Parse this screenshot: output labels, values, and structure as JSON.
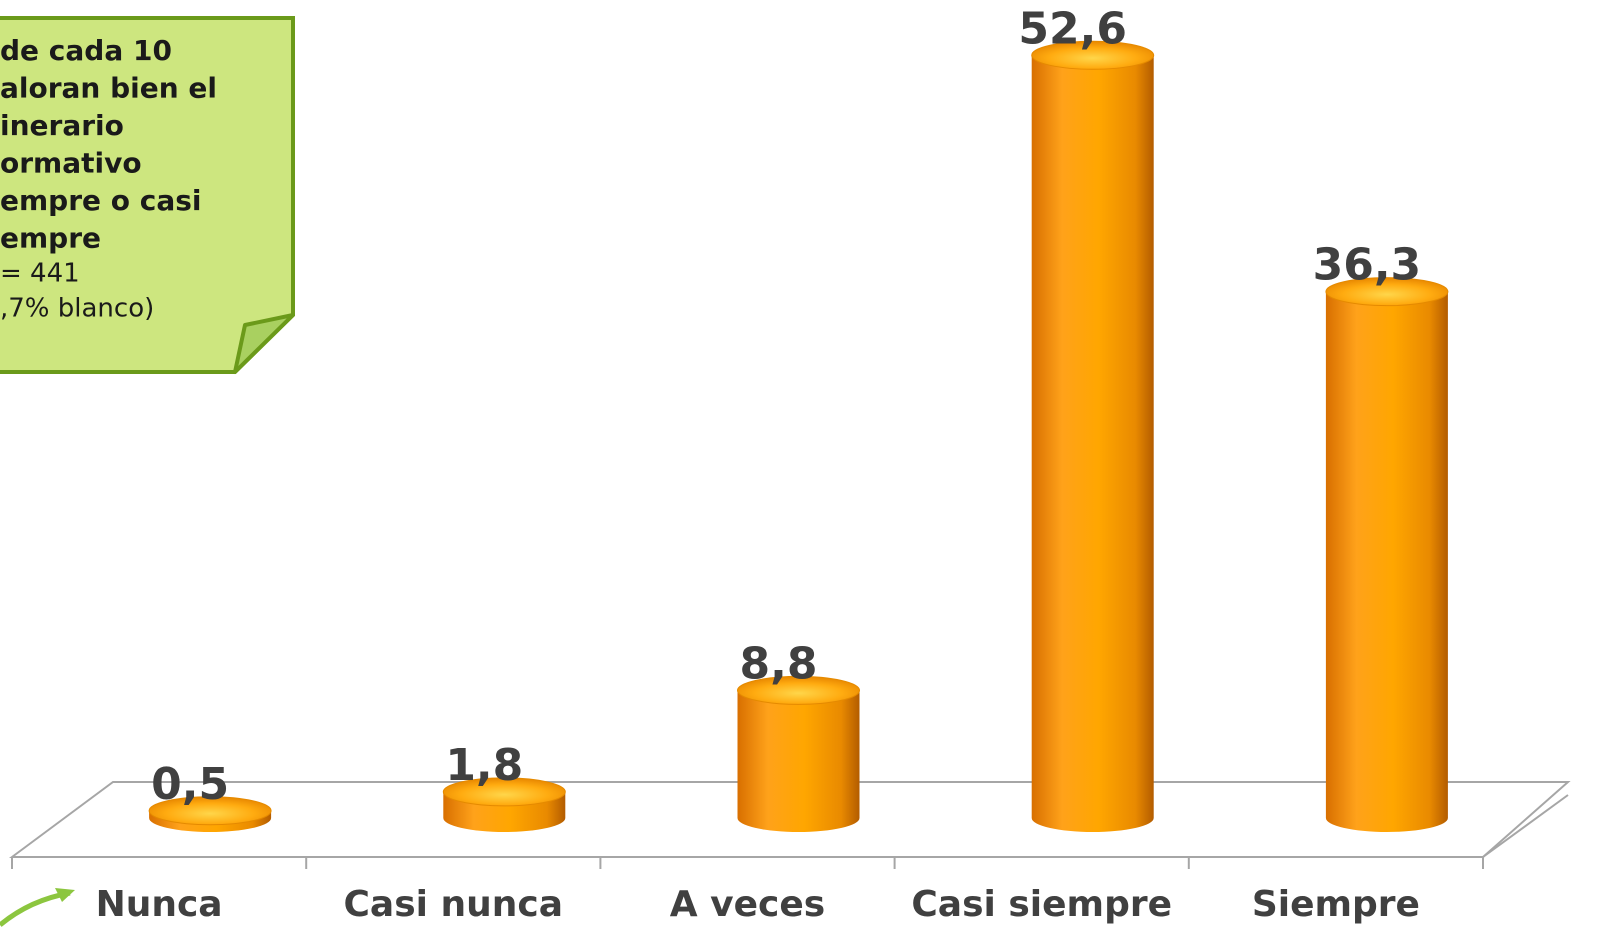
{
  "chart_data": {
    "type": "bar3d",
    "categories": [
      "Nunca",
      "Casi nunca",
      "A veces",
      "Casi siempre",
      "Siempre"
    ],
    "values": [
      0.5,
      1.8,
      8.8,
      52.6,
      36.3
    ],
    "value_labels": [
      "0,5",
      "1,8",
      "8,8",
      "52,6",
      "36,3"
    ],
    "color": "#ff9f00",
    "annotation": {
      "heading": [
        "de cada 10",
        "aloran bien el",
        "inerario",
        "ormativo",
        "empre o casi",
        "empre"
      ],
      "note": [
        "= 441",
        ",7% blanco)"
      ]
    }
  }
}
